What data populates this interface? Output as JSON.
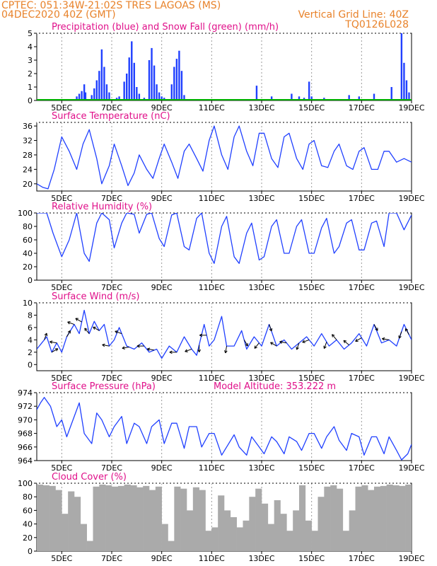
{
  "header": {
    "line1_left": "CPTEC:   051:34W-21:02S   TRES LAGOAS (MS)",
    "line2_left": "04DEC2020 40Z (GMT)",
    "line2_right": "Vertical Grid Line: 40Z",
    "line3_right": "TQ0126L028"
  },
  "colors": {
    "header": "#e8822a",
    "title": "#e0108a",
    "line": "#2040ff",
    "snow": "#00b000",
    "cloud": "#aaaaaa"
  },
  "chart_data": [
    {
      "type": "bar",
      "title": "Precipitation (blue) and Snow Fall (green) (mm/h)",
      "ylim": [
        0,
        5
      ],
      "yticks": [
        0,
        1,
        2,
        3,
        4,
        5
      ],
      "xticks": [
        "5DEC",
        "7DEC",
        "9DEC",
        "11DEC",
        "13DEC",
        "15DEC",
        "17DEC",
        "19DEC"
      ],
      "series": [
        {
          "name": "Precipitation",
          "color": "#2040ff",
          "x": [
            5.6,
            5.7,
            5.8,
            5.9,
            5.95,
            6.2,
            6.3,
            6.4,
            6.5,
            6.6,
            6.7,
            6.8,
            6.9,
            7.2,
            7.3,
            7.5,
            7.6,
            7.7,
            7.8,
            7.9,
            8.0,
            8.1,
            8.3,
            8.5,
            8.6,
            8.7,
            8.8,
            8.9,
            9.0,
            9.1,
            9.4,
            9.5,
            9.6,
            9.7,
            9.8,
            9.9,
            12.8,
            13.4,
            14.2,
            14.5,
            14.7,
            14.9,
            15.0,
            15.5,
            16.5,
            16.9,
            17.5,
            18.2,
            18.6,
            18.7,
            18.8,
            18.9
          ],
          "values": [
            0.3,
            0.5,
            0.7,
            1.2,
            0.6,
            0.4,
            0.9,
            1.5,
            2.2,
            3.8,
            2.5,
            1.2,
            0.6,
            0.2,
            0.3,
            1.4,
            2.0,
            3.2,
            4.4,
            2.8,
            1.0,
            0.5,
            0.2,
            3.0,
            3.9,
            2.6,
            1.2,
            0.6,
            0.3,
            0.2,
            1.2,
            2.5,
            3.1,
            3.7,
            2.2,
            0.4,
            1.1,
            0.3,
            0.5,
            0.3,
            0.2,
            1.4,
            0.3,
            0.2,
            0.4,
            0.3,
            0.5,
            1.0,
            5.0,
            2.8,
            1.5,
            0.6
          ]
        },
        {
          "name": "Snow Fall",
          "color": "#00b000",
          "x": [
            4.0,
            19.0
          ],
          "values": [
            0,
            0
          ]
        }
      ]
    },
    {
      "type": "line",
      "title": "Surface Temperature (nC)",
      "ylim": [
        18,
        37
      ],
      "yticks": [
        20,
        24,
        28,
        32,
        36
      ],
      "xticks": [
        "5DEC",
        "7DEC",
        "9DEC",
        "11DEC",
        "13DEC",
        "15DEC",
        "17DEC",
        "19DEC"
      ],
      "x": [
        4.0,
        4.25,
        4.45,
        4.7,
        5.0,
        5.3,
        5.6,
        5.85,
        6.1,
        6.4,
        6.6,
        6.9,
        7.1,
        7.4,
        7.65,
        7.9,
        8.1,
        8.4,
        8.65,
        8.9,
        9.1,
        9.4,
        9.65,
        9.9,
        10.1,
        10.4,
        10.65,
        10.9,
        11.1,
        11.4,
        11.65,
        11.9,
        12.1,
        12.4,
        12.65,
        12.9,
        13.1,
        13.4,
        13.65,
        13.9,
        14.1,
        14.4,
        14.65,
        14.9,
        15.1,
        15.4,
        15.65,
        15.9,
        16.1,
        16.4,
        16.65,
        16.9,
        17.1,
        17.4,
        17.65,
        17.9,
        18.1,
        18.4,
        18.7,
        19.0
      ],
      "values": [
        20,
        19,
        18.6,
        24,
        33,
        29,
        24,
        31,
        35,
        27,
        20,
        25,
        31,
        25,
        19.5,
        23,
        28,
        24,
        21.5,
        27,
        31,
        26,
        21.5,
        29,
        31,
        27,
        23.5,
        32,
        36,
        28,
        24,
        33,
        36,
        29,
        25,
        34,
        34,
        27,
        24.5,
        33,
        34,
        27,
        24,
        31,
        32,
        25,
        24.5,
        29,
        31,
        25,
        24,
        29,
        30,
        24,
        24,
        29,
        29,
        26,
        27,
        26
      ]
    },
    {
      "type": "line",
      "title": "Relative Humidity (%)",
      "ylim": [
        0,
        100
      ],
      "yticks": [
        0,
        20,
        40,
        60,
        80,
        100
      ],
      "xticks": [
        "5DEC",
        "7DEC",
        "9DEC",
        "11DEC",
        "13DEC",
        "15DEC",
        "17DEC",
        "19DEC"
      ],
      "x": [
        4.0,
        4.2,
        4.4,
        4.65,
        5.0,
        5.3,
        5.6,
        5.9,
        6.1,
        6.4,
        6.6,
        6.9,
        7.1,
        7.4,
        7.6,
        7.9,
        8.1,
        8.4,
        8.6,
        8.9,
        9.1,
        9.4,
        9.6,
        9.9,
        10.1,
        10.4,
        10.6,
        10.9,
        11.1,
        11.4,
        11.6,
        11.9,
        12.1,
        12.4,
        12.6,
        12.9,
        13.1,
        13.4,
        13.6,
        13.9,
        14.1,
        14.4,
        14.6,
        14.9,
        15.1,
        15.4,
        15.6,
        15.9,
        16.1,
        16.4,
        16.6,
        16.9,
        17.1,
        17.4,
        17.6,
        17.9,
        18.1,
        18.4,
        18.7,
        19.0
      ],
      "values": [
        100,
        100,
        100,
        70,
        35,
        60,
        100,
        40,
        28,
        85,
        100,
        90,
        48,
        85,
        100,
        98,
        70,
        98,
        100,
        62,
        50,
        97,
        100,
        50,
        45,
        92,
        100,
        40,
        25,
        80,
        95,
        35,
        25,
        70,
        85,
        30,
        35,
        80,
        90,
        40,
        40,
        80,
        90,
        40,
        40,
        78,
        92,
        40,
        50,
        85,
        90,
        45,
        45,
        85,
        88,
        50,
        100,
        100,
        75,
        97
      ]
    },
    {
      "type": "line",
      "title": "Surface Wind (m/s)",
      "ylim": [
        -1,
        10
      ],
      "yticks": [
        0,
        2,
        4,
        6,
        8,
        10
      ],
      "xticks": [
        "5DEC",
        "7DEC",
        "9DEC",
        "11DEC",
        "13DEC",
        "15DEC",
        "17DEC",
        "19DEC"
      ],
      "x": [
        4.0,
        4.2,
        4.4,
        4.6,
        4.8,
        5.0,
        5.2,
        5.5,
        5.7,
        5.9,
        6.1,
        6.3,
        6.5,
        6.7,
        6.9,
        7.1,
        7.3,
        7.6,
        7.9,
        8.2,
        8.5,
        8.8,
        9.0,
        9.3,
        9.6,
        9.9,
        10.2,
        10.4,
        10.7,
        10.9,
        11.1,
        11.4,
        11.6,
        11.9,
        12.2,
        12.4,
        12.7,
        13.0,
        13.3,
        13.6,
        13.9,
        14.2,
        14.5,
        14.8,
        15.1,
        15.4,
        15.7,
        16.0,
        16.3,
        16.6,
        16.9,
        17.2,
        17.5,
        17.8,
        18.1,
        18.4,
        18.7,
        19.0
      ],
      "values": [
        2.5,
        3.5,
        4.5,
        2.0,
        3.5,
        2.0,
        4.5,
        6.5,
        5.0,
        8.8,
        5.0,
        7.0,
        5.5,
        6.5,
        3.0,
        4.0,
        6.0,
        3.0,
        2.5,
        3.5,
        2.0,
        2.5,
        1.0,
        3.0,
        2.0,
        4.5,
        2.5,
        1.5,
        6.5,
        3.0,
        4.0,
        7.8,
        3.0,
        3.0,
        5.5,
        2.5,
        4.5,
        3.0,
        6.5,
        3.0,
        4.0,
        2.5,
        3.5,
        4.5,
        3.0,
        5.0,
        3.0,
        4.0,
        2.5,
        3.5,
        5.0,
        3.0,
        6.5,
        3.5,
        4.0,
        3.0,
        6.5,
        4.0
      ],
      "arrows": [
        {
          "x": 4.3,
          "angle": 70
        },
        {
          "x": 4.6,
          "angle": 30
        },
        {
          "x": 4.8,
          "angle": 170
        },
        {
          "x": 5.2,
          "angle": 60
        },
        {
          "x": 5.5,
          "angle": 160
        },
        {
          "x": 5.8,
          "angle": 150
        },
        {
          "x": 6.1,
          "angle": 130
        },
        {
          "x": 6.5,
          "angle": 150
        },
        {
          "x": 6.9,
          "angle": 170
        },
        {
          "x": 7.4,
          "angle": 160
        },
        {
          "x": 7.7,
          "angle": 190
        },
        {
          "x": 8.3,
          "angle": 180
        },
        {
          "x": 8.7,
          "angle": 170
        },
        {
          "x": 9.6,
          "angle": 180
        },
        {
          "x": 10.2,
          "angle": 200
        },
        {
          "x": 10.5,
          "angle": 270
        },
        {
          "x": 10.8,
          "angle": 180
        },
        {
          "x": 11.6,
          "angle": 260
        },
        {
          "x": 12.3,
          "angle": 300
        },
        {
          "x": 12.9,
          "angle": 230
        },
        {
          "x": 13.3,
          "angle": 290
        },
        {
          "x": 13.6,
          "angle": 150
        },
        {
          "x": 14.0,
          "angle": 170
        },
        {
          "x": 14.5,
          "angle": 250
        },
        {
          "x": 14.9,
          "angle": 200
        },
        {
          "x": 15.6,
          "angle": 250
        },
        {
          "x": 16.0,
          "angle": 130
        },
        {
          "x": 16.5,
          "angle": 140
        },
        {
          "x": 17.0,
          "angle": 210
        },
        {
          "x": 17.5,
          "angle": 300
        },
        {
          "x": 18.1,
          "angle": 170
        },
        {
          "x": 18.6,
          "angle": 250
        },
        {
          "x": 18.9,
          "angle": 120
        }
      ]
    },
    {
      "type": "line",
      "title": "Surface Pressure (hPa)",
      "subtitle": "Model Altitude: 353.222 m",
      "ylim": [
        964,
        974
      ],
      "yticks": [
        964,
        966,
        968,
        970,
        972,
        974
      ],
      "xticks": [
        "5DEC",
        "7DEC",
        "9DEC",
        "11DEC",
        "13DEC",
        "15DEC",
        "17DEC",
        "19DEC"
      ],
      "x": [
        4.0,
        4.15,
        4.3,
        4.55,
        4.8,
        5.0,
        5.2,
        5.5,
        5.7,
        5.9,
        6.2,
        6.4,
        6.6,
        6.9,
        7.1,
        7.4,
        7.6,
        7.9,
        8.1,
        8.4,
        8.6,
        8.9,
        9.1,
        9.4,
        9.6,
        9.9,
        10.1,
        10.4,
        10.6,
        10.9,
        11.1,
        11.4,
        11.6,
        11.9,
        12.1,
        12.4,
        12.6,
        12.9,
        13.1,
        13.4,
        13.6,
        13.9,
        14.1,
        14.4,
        14.6,
        14.9,
        15.1,
        15.4,
        15.6,
        15.9,
        16.1,
        16.4,
        16.6,
        16.9,
        17.1,
        17.4,
        17.6,
        17.9,
        18.1,
        18.4,
        18.6,
        18.85,
        19.0
      ],
      "values": [
        971.5,
        972.5,
        973.3,
        972,
        969,
        970,
        967.5,
        970.5,
        972.5,
        968,
        966.5,
        971,
        970,
        967.5,
        969,
        970.5,
        966.5,
        969.5,
        969,
        966.5,
        969,
        970,
        966.5,
        969.5,
        969.5,
        965.8,
        969,
        969,
        966,
        968,
        968,
        964.8,
        966,
        967.8,
        966,
        964.8,
        967.5,
        966,
        965,
        967.5,
        966.8,
        965,
        967.5,
        966.8,
        965.5,
        968,
        968,
        965.8,
        967.5,
        969,
        967,
        965.5,
        968,
        967.5,
        964.8,
        967.5,
        967.5,
        965,
        967.5,
        965.5,
        964.1,
        965,
        966.4
      ]
    },
    {
      "type": "bar",
      "title": "Cloud Cover (%)",
      "ylim": [
        0,
        100
      ],
      "yticks": [
        0,
        20,
        40,
        60,
        80,
        100
      ],
      "xticks": [
        "5DEC",
        "7DEC",
        "9DEC",
        "11DEC",
        "13DEC",
        "15DEC",
        "17DEC",
        "19DEC"
      ],
      "x": [
        4.0,
        4.25,
        4.5,
        4.75,
        5.0,
        5.25,
        5.5,
        5.75,
        6.0,
        6.25,
        6.5,
        6.75,
        7.0,
        7.25,
        7.5,
        7.75,
        8.0,
        8.25,
        8.5,
        8.75,
        9.0,
        9.25,
        9.5,
        9.75,
        10.0,
        10.25,
        10.5,
        10.75,
        11.0,
        11.25,
        11.5,
        11.75,
        12.0,
        12.25,
        12.5,
        12.75,
        13.0,
        13.25,
        13.5,
        13.75,
        14.0,
        14.25,
        14.5,
        14.75,
        15.0,
        15.25,
        15.5,
        15.75,
        16.0,
        16.25,
        16.5,
        16.75,
        17.0,
        17.25,
        17.5,
        17.75,
        18.0,
        18.25,
        18.5,
        18.75
      ],
      "values": [
        98,
        97,
        96,
        90,
        55,
        88,
        80,
        40,
        15,
        95,
        98,
        97,
        95,
        96,
        98,
        97,
        94,
        96,
        90,
        95,
        40,
        15,
        95,
        92,
        60,
        94,
        90,
        30,
        35,
        82,
        60,
        50,
        35,
        45,
        80,
        92,
        70,
        40,
        75,
        55,
        30,
        60,
        97,
        45,
        30,
        80,
        95,
        97,
        92,
        30,
        60,
        95,
        97,
        90,
        95,
        96,
        98,
        97,
        96,
        98
      ]
    }
  ]
}
